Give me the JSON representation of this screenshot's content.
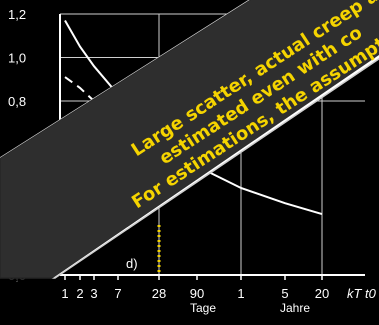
{
  "chart_data": {
    "type": "line",
    "x_tick_labels": [
      "1",
      "2",
      "3",
      "7",
      "28",
      "90",
      "1",
      "5",
      "20"
    ],
    "x_units": [
      "Tage",
      "Jahre"
    ],
    "x_axis_label": "kT t0",
    "y_tick_labels": [
      "0,0",
      "0,8",
      "1,0",
      "1,2"
    ],
    "ylim": [
      0,
      1.2
    ],
    "grid": true,
    "series": [
      {
        "style": "solid",
        "color": "#ffffff",
        "points": [
          [
            1,
            1.17
          ],
          [
            2,
            1.05
          ],
          [
            3,
            0.96
          ],
          [
            7,
            0.83
          ],
          [
            28,
            0.6
          ],
          [
            90,
            0.5
          ],
          [
            365,
            0.4
          ],
          [
            1825,
            0.33
          ],
          [
            7300,
            0.28
          ]
        ]
      },
      {
        "style": "dashed",
        "color": "#ffffff",
        "points": [
          [
            1,
            0.91
          ],
          [
            2,
            0.86
          ],
          [
            3,
            0.8
          ]
        ]
      }
    ],
    "marker": {
      "x": 28,
      "color": "#f5d400",
      "style": "dotted"
    },
    "partial_label": "d)"
  },
  "banner": {
    "lines": [
      "Large scatter, actual creep a",
      "estimated even with co",
      "For estimations, the assumptio"
    ],
    "color": "#f5d400"
  },
  "colors": {
    "background": "#000000",
    "axis": "#ffffff",
    "grid": "#cfcfcf",
    "highlight": "#f5d400"
  }
}
